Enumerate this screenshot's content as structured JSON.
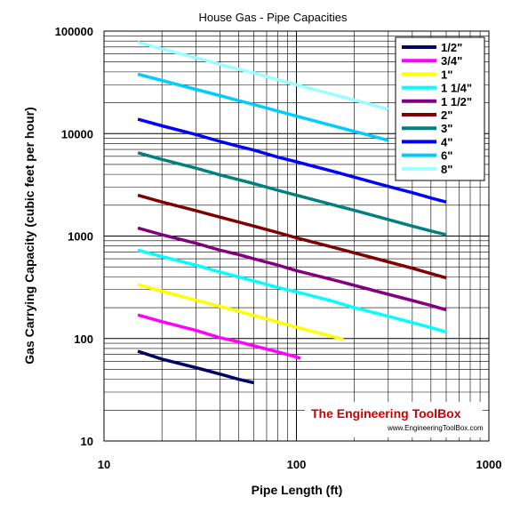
{
  "chart_data": {
    "type": "line",
    "title": "House Gas - Pipe Capacities",
    "xlabel": "Pipe Length (ft)",
    "ylabel": "Gas Carrying Capacity (cubic feet per hour)",
    "x_scale": "log",
    "y_scale": "log",
    "xlim": [
      10,
      1000
    ],
    "ylim": [
      10,
      100000
    ],
    "x_ticks": [
      "10",
      "100",
      "1000"
    ],
    "y_ticks": [
      "10",
      "100",
      "1000",
      "10000",
      "100000"
    ],
    "grid": true,
    "legend_position": "top-right",
    "series": [
      {
        "name": "1/2\"",
        "color": "#000066",
        "points": [
          [
            15,
            75
          ],
          [
            20,
            63
          ],
          [
            30,
            52
          ],
          [
            40,
            45
          ],
          [
            50,
            40
          ],
          [
            60,
            37
          ]
        ]
      },
      {
        "name": "3/4\"",
        "color": "#ff00ff",
        "points": [
          [
            15,
            170
          ],
          [
            20,
            146
          ],
          [
            30,
            120
          ],
          [
            40,
            102
          ],
          [
            50,
            93
          ],
          [
            60,
            85
          ],
          [
            80,
            74
          ],
          [
            100,
            66
          ],
          [
            105,
            64
          ]
        ]
      },
      {
        "name": "1\"",
        "color": "#ffff00",
        "points": [
          [
            15,
            335
          ],
          [
            20,
            290
          ],
          [
            30,
            237
          ],
          [
            40,
            206
          ],
          [
            50,
            185
          ],
          [
            60,
            168
          ],
          [
            80,
            145
          ],
          [
            100,
            129
          ],
          [
            150,
            106
          ],
          [
            175,
            98
          ]
        ]
      },
      {
        "name": "1 1/4\"",
        "color": "#00ffff",
        "points": [
          [
            15,
            730
          ],
          [
            20,
            630
          ],
          [
            30,
            520
          ],
          [
            40,
            445
          ],
          [
            50,
            400
          ],
          [
            60,
            365
          ],
          [
            80,
            315
          ],
          [
            100,
            285
          ],
          [
            150,
            235
          ],
          [
            200,
            200
          ],
          [
            300,
            165
          ],
          [
            400,
            143
          ],
          [
            500,
            128
          ],
          [
            600,
            116
          ]
        ]
      },
      {
        "name": "1 1/2\"",
        "color": "#800080",
        "points": [
          [
            15,
            1200
          ],
          [
            20,
            1030
          ],
          [
            30,
            850
          ],
          [
            40,
            730
          ],
          [
            50,
            660
          ],
          [
            60,
            600
          ],
          [
            80,
            520
          ],
          [
            100,
            460
          ],
          [
            150,
            380
          ],
          [
            200,
            330
          ],
          [
            300,
            270
          ],
          [
            400,
            235
          ],
          [
            500,
            210
          ],
          [
            600,
            190
          ]
        ]
      },
      {
        "name": "2\"",
        "color": "#800000",
        "points": [
          [
            15,
            2500
          ],
          [
            20,
            2150
          ],
          [
            30,
            1770
          ],
          [
            40,
            1530
          ],
          [
            50,
            1370
          ],
          [
            60,
            1250
          ],
          [
            80,
            1080
          ],
          [
            100,
            960
          ],
          [
            150,
            790
          ],
          [
            200,
            685
          ],
          [
            300,
            560
          ],
          [
            400,
            485
          ],
          [
            500,
            430
          ],
          [
            600,
            390
          ]
        ]
      },
      {
        "name": "3\"",
        "color": "#008080",
        "points": [
          [
            15,
            6500
          ],
          [
            20,
            5600
          ],
          [
            30,
            4600
          ],
          [
            40,
            3950
          ],
          [
            50,
            3550
          ],
          [
            60,
            3250
          ],
          [
            80,
            2800
          ],
          [
            100,
            2500
          ],
          [
            150,
            2050
          ],
          [
            200,
            1780
          ],
          [
            300,
            1450
          ],
          [
            400,
            1250
          ],
          [
            500,
            1120
          ],
          [
            600,
            1030
          ]
        ]
      },
      {
        "name": "4\"",
        "color": "#0000ff",
        "points": [
          [
            15,
            13800
          ],
          [
            20,
            11900
          ],
          [
            30,
            9800
          ],
          [
            40,
            8400
          ],
          [
            50,
            7500
          ],
          [
            60,
            6900
          ],
          [
            80,
            5900
          ],
          [
            100,
            5300
          ],
          [
            150,
            4350
          ],
          [
            200,
            3750
          ],
          [
            300,
            3050
          ],
          [
            400,
            2650
          ],
          [
            500,
            2350
          ],
          [
            600,
            2150
          ]
        ]
      },
      {
        "name": "6\"",
        "color": "#00ccff",
        "points": [
          [
            15,
            38000
          ],
          [
            20,
            33000
          ],
          [
            30,
            27000
          ],
          [
            40,
            23500
          ],
          [
            50,
            21000
          ],
          [
            60,
            19200
          ],
          [
            80,
            16600
          ],
          [
            100,
            14800
          ],
          [
            150,
            12100
          ],
          [
            200,
            10500
          ],
          [
            300,
            8600
          ]
        ]
      },
      {
        "name": "8\"",
        "color": "#99ffff",
        "points": [
          [
            15,
            78000
          ],
          [
            20,
            67000
          ],
          [
            30,
            55000
          ],
          [
            40,
            47500
          ],
          [
            50,
            42500
          ],
          [
            60,
            39000
          ],
          [
            80,
            33500
          ],
          [
            100,
            30000
          ],
          [
            150,
            24500
          ],
          [
            200,
            21200
          ],
          [
            300,
            17300
          ]
        ]
      }
    ]
  },
  "watermark": {
    "title": "The Engineering ToolBox",
    "url": "www.EngineeringToolBox.com"
  }
}
